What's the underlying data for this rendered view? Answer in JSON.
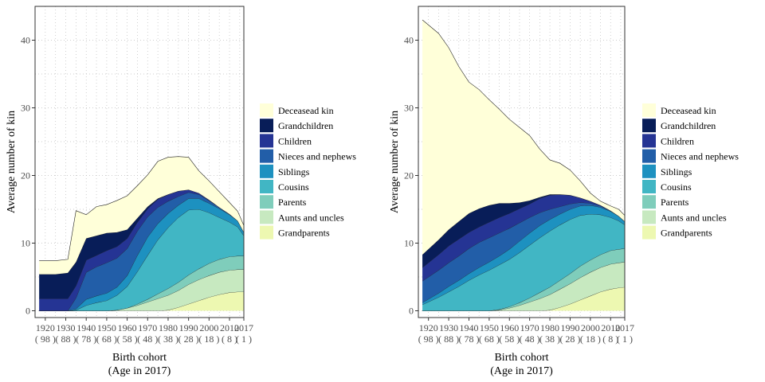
{
  "chart_data": [
    {
      "type": "area",
      "stacked": true,
      "xlabel": "Birth cohort",
      "xlabel2": "(Age in 2017)",
      "ylabel": "Average number of kin",
      "xlim": [
        1915,
        2017
      ],
      "ylim": [
        -1,
        45
      ],
      "yticks": [
        0,
        10,
        20,
        30,
        40
      ],
      "xticks": [
        {
          "value": 1920,
          "label": "1920",
          "sub": "( 98 )"
        },
        {
          "value": 1930,
          "label": "1930",
          "sub": "( 88 )"
        },
        {
          "value": 1940,
          "label": "1940",
          "sub": "( 78 )"
        },
        {
          "value": 1950,
          "label": "1950",
          "sub": "( 68 )"
        },
        {
          "value": 1960,
          "label": "1960",
          "sub": "( 58 )"
        },
        {
          "value": 1970,
          "label": "1970",
          "sub": "( 48 )"
        },
        {
          "value": 1980,
          "label": "1980",
          "sub": "( 38 )"
        },
        {
          "value": 1990,
          "label": "1990",
          "sub": "( 28 )"
        },
        {
          "value": 2000,
          "label": "2000",
          "sub": "( 18 )"
        },
        {
          "value": 2010,
          "label": "2010",
          "sub": "( 8 )"
        },
        {
          "value": 2017,
          "label": "2017",
          "sub": "( 1 )"
        }
      ],
      "grid": true,
      "legend_position": "right",
      "x": [
        1917,
        1925,
        1931,
        1935,
        1940,
        1945,
        1950,
        1955,
        1960,
        1965,
        1970,
        1975,
        1980,
        1985,
        1990,
        1995,
        2000,
        2005,
        2010,
        2014,
        2017
      ],
      "series": [
        {
          "name": "Grandparents",
          "color": "#edf8b1",
          "values": [
            0,
            0,
            0,
            0,
            0,
            0,
            0,
            0,
            0,
            0,
            0,
            0,
            0.1,
            0.5,
            1.0,
            1.5,
            2.0,
            2.4,
            2.7,
            2.8,
            2.8
          ]
        },
        {
          "name": "Aunts and uncles",
          "color": "#c7e9c0",
          "values": [
            0,
            0,
            0,
            0,
            0,
            0,
            0,
            0.1,
            0.4,
            0.8,
            1.3,
            1.8,
            2.2,
            2.5,
            2.9,
            3.1,
            3.2,
            3.3,
            3.3,
            3.3,
            3.3
          ]
        },
        {
          "name": "Parents",
          "color": "#7fcdbb",
          "values": [
            0,
            0,
            0,
            0,
            0,
            0,
            0,
            0,
            0,
            0.2,
            0.4,
            0.7,
            1.0,
            1.2,
            1.4,
            1.6,
            1.8,
            1.9,
            2.0,
            2.0,
            2.0
          ]
        },
        {
          "name": "Cousins",
          "color": "#41b6c4",
          "values": [
            0,
            0,
            0,
            0.1,
            0.8,
            1.2,
            1.5,
            2.2,
            3.2,
            4.8,
            6.5,
            8.0,
            9.0,
            9.6,
            9.6,
            8.8,
            7.5,
            6.2,
            5.1,
            4.3,
            3.0
          ]
        },
        {
          "name": "Siblings",
          "color": "#1d91c0",
          "values": [
            0,
            0,
            0,
            0.2,
            0.9,
            1.0,
            1.1,
            1.2,
            1.6,
            2.4,
            2.7,
            2.4,
            2.1,
            1.8,
            1.7,
            1.6,
            1.4,
            1.3,
            1.1,
            0.9,
            0.5
          ]
        },
        {
          "name": "Nieces and nephews",
          "color": "#225ea8",
          "values": [
            0,
            0,
            0,
            1.6,
            4.0,
            4.3,
            4.5,
            4.3,
            4.0,
            3.6,
            3.0,
            2.4,
            1.8,
            1.3,
            0.9,
            0.6,
            0.4,
            0.2,
            0.1,
            0.0,
            0.0
          ]
        },
        {
          "name": "Children",
          "color": "#253494",
          "values": [
            1.8,
            1.8,
            1.8,
            1.8,
            1.8,
            1.7,
            1.8,
            1.7,
            1.5,
            1.3,
            1.2,
            1.2,
            1.0,
            0.8,
            0.4,
            0.2,
            0.1,
            0,
            0,
            0,
            0
          ]
        },
        {
          "name": "Grandchildren",
          "color": "#081d58",
          "values": [
            3.6,
            3.6,
            3.8,
            3.5,
            3.2,
            2.9,
            2.6,
            2.1,
            1.3,
            0.6,
            0.3,
            0.1,
            0,
            0,
            0,
            0,
            0,
            0,
            0,
            0,
            0
          ]
        },
        {
          "name": "Deceasead kin",
          "color": "#ffffd9",
          "values": [
            2.0,
            2.0,
            2.0,
            7.6,
            3.5,
            4.3,
            4.2,
            4.7,
            5.0,
            4.8,
            4.7,
            5.5,
            5.5,
            5.1,
            4.8,
            3.3,
            2.8,
            2.3,
            1.7,
            1.4,
            1.0
          ]
        }
      ]
    },
    {
      "type": "area",
      "stacked": true,
      "xlabel": "Birth cohort",
      "xlabel2": "(Age in 2017)",
      "ylabel": "Average number of kin",
      "xlim": [
        1915,
        2017
      ],
      "ylim": [
        -1,
        45
      ],
      "yticks": [
        0,
        10,
        20,
        30,
        40
      ],
      "xticks": [
        {
          "value": 1920,
          "label": "1920",
          "sub": "( 98 )"
        },
        {
          "value": 1930,
          "label": "1930",
          "sub": "( 88 )"
        },
        {
          "value": 1940,
          "label": "1940",
          "sub": "( 78 )"
        },
        {
          "value": 1950,
          "label": "1950",
          "sub": "( 68 )"
        },
        {
          "value": 1960,
          "label": "1960",
          "sub": "( 58 )"
        },
        {
          "value": 1970,
          "label": "1970",
          "sub": "( 48 )"
        },
        {
          "value": 1980,
          "label": "1980",
          "sub": "( 38 )"
        },
        {
          "value": 1990,
          "label": "1990",
          "sub": "( 28 )"
        },
        {
          "value": 2000,
          "label": "2000",
          "sub": "( 18 )"
        },
        {
          "value": 2010,
          "label": "2010",
          "sub": "( 8 )"
        },
        {
          "value": 2017,
          "label": "2017",
          "sub": "( 1 )"
        }
      ],
      "grid": true,
      "legend_position": "right",
      "x": [
        1917,
        1925,
        1930,
        1935,
        1940,
        1945,
        1950,
        1955,
        1960,
        1965,
        1970,
        1975,
        1980,
        1985,
        1990,
        1995,
        2000,
        2005,
        2010,
        2014,
        2017
      ],
      "series": [
        {
          "name": "Grandparents",
          "color": "#edf8b1",
          "values": [
            0,
            0,
            0,
            0,
            0,
            0,
            0,
            0,
            0,
            0,
            0,
            0,
            0.1,
            0.5,
            1.0,
            1.6,
            2.2,
            2.8,
            3.2,
            3.4,
            3.5
          ]
        },
        {
          "name": "Aunts and uncles",
          "color": "#c7e9c0",
          "values": [
            0,
            0,
            0,
            0,
            0,
            0,
            0,
            0.1,
            0.4,
            0.8,
            1.3,
            1.8,
            2.3,
            2.7,
            3.0,
            3.3,
            3.5,
            3.6,
            3.7,
            3.7,
            3.7
          ]
        },
        {
          "name": "Parents",
          "color": "#7fcdbb",
          "values": [
            0,
            0,
            0,
            0,
            0,
            0,
            0,
            0.1,
            0.2,
            0.4,
            0.6,
            0.9,
            1.1,
            1.3,
            1.5,
            1.7,
            1.8,
            1.9,
            2.0,
            2.0,
            2.0
          ]
        },
        {
          "name": "Cousins",
          "color": "#41b6c4",
          "values": [
            0.9,
            2.0,
            2.8,
            3.6,
            4.5,
            5.3,
            6.0,
            6.6,
            7.0,
            7.4,
            7.8,
            8.1,
            8.3,
            8.2,
            8.0,
            7.5,
            6.8,
            5.9,
            4.9,
            4.2,
            3.5
          ]
        },
        {
          "name": "Siblings",
          "color": "#1d91c0",
          "values": [
            0.3,
            0.6,
            0.8,
            0.9,
            1.0,
            1.1,
            1.2,
            1.3,
            1.5,
            1.7,
            1.8,
            1.8,
            1.7,
            1.6,
            1.5,
            1.4,
            1.3,
            1.1,
            0.9,
            0.7,
            0.5
          ]
        },
        {
          "name": "Nieces and nephews",
          "color": "#225ea8",
          "values": [
            3.2,
            3.4,
            3.5,
            3.6,
            3.7,
            3.7,
            3.6,
            3.4,
            3.1,
            2.7,
            2.3,
            1.9,
            1.5,
            1.1,
            0.8,
            0.5,
            0.3,
            0.2,
            0.1,
            0,
            0
          ]
        },
        {
          "name": "Children",
          "color": "#253494",
          "values": [
            2.0,
            2.3,
            2.5,
            2.5,
            2.4,
            2.3,
            2.3,
            2.3,
            2.2,
            2.1,
            2.0,
            2.1,
            2.1,
            1.8,
            1.3,
            0.7,
            0.3,
            0.1,
            0,
            0,
            0
          ]
        },
        {
          "name": "Grandchildren",
          "color": "#081d58",
          "values": [
            1.9,
            2.2,
            2.4,
            2.6,
            2.8,
            2.7,
            2.5,
            2.1,
            1.5,
            0.9,
            0.5,
            0.2,
            0.1,
            0,
            0,
            0,
            0,
            0,
            0,
            0,
            0
          ]
        },
        {
          "name": "Deceasead kin",
          "color": "#ffffd9",
          "values": [
            34.7,
            30.5,
            26.9,
            22.9,
            19.4,
            17.6,
            15.6,
            13.9,
            12.4,
            11.1,
            9.6,
            7.1,
            5.1,
            4.6,
            3.7,
            2.5,
            1.2,
            0.6,
            0.7,
            1.0,
            0.9
          ]
        }
      ]
    }
  ]
}
